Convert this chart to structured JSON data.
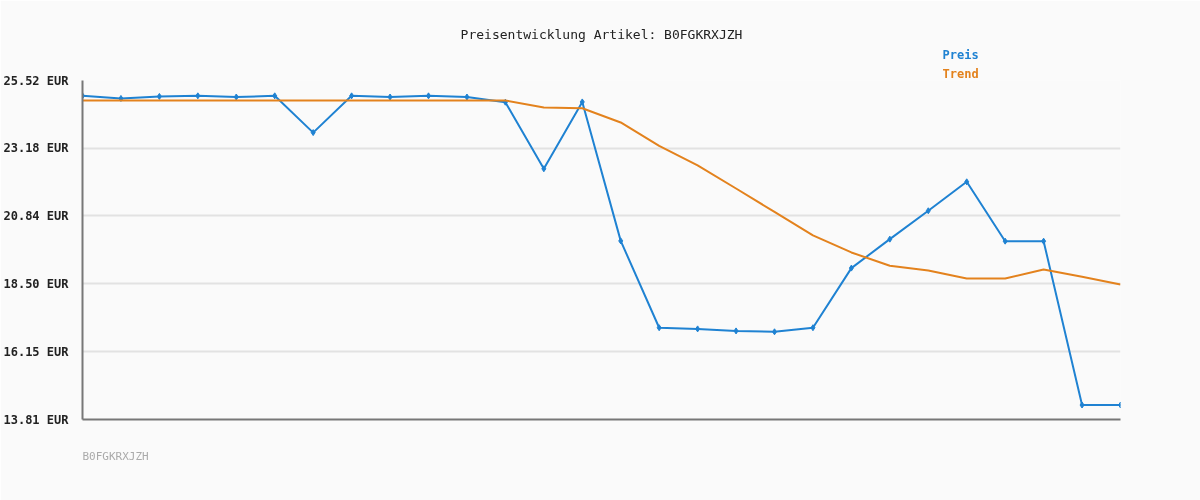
{
  "chart_data": {
    "type": "line",
    "title": "Preisentwicklung Artikel: B0FGKRXJZH",
    "categories": [
      null,
      null,
      null,
      null,
      null,
      null,
      null,
      null,
      null,
      null,
      null,
      null,
      null,
      null,
      null,
      null,
      null,
      null,
      null,
      null,
      null,
      null,
      null,
      null,
      null,
      null,
      null,
      null
    ],
    "series": [
      {
        "name": "Preis",
        "color": "#1f82d2",
        "marker": "diamond",
        "values": [
          24.99,
          24.9,
          24.97,
          24.99,
          24.95,
          24.99,
          23.72,
          24.99,
          24.95,
          24.99,
          24.95,
          24.77,
          22.47,
          24.78,
          19.98,
          16.98,
          16.94,
          16.87,
          16.84,
          16.98,
          19.04,
          20.04,
          21.02,
          22.02,
          19.97,
          19.97,
          14.31,
          14.31
        ]
      },
      {
        "name": "Trend",
        "color": "#e3821d",
        "marker": "none",
        "values": [
          24.83,
          24.83,
          24.83,
          24.83,
          24.83,
          24.83,
          24.83,
          24.83,
          24.83,
          24.83,
          24.83,
          24.83,
          24.59,
          24.56,
          24.07,
          23.26,
          22.59,
          21.79,
          20.98,
          20.17,
          19.58,
          19.12,
          18.96,
          18.68,
          18.68,
          18.99,
          18.74,
          18.47
        ]
      }
    ],
    "ylim": [
      13.81,
      25.52
    ],
    "yticks": [
      {
        "value": 13.81,
        "label": "13.81 EUR"
      },
      {
        "value": 16.15,
        "label": "16.15 EUR"
      },
      {
        "value": 18.5,
        "label": "18.50 EUR"
      },
      {
        "value": 20.84,
        "label": "20.84 EUR"
      },
      {
        "value": 23.18,
        "label": "23.18 EUR"
      },
      {
        "value": 25.52,
        "label": "25.52 EUR"
      }
    ],
    "grid": "y",
    "tick_labels": "y",
    "annotations": [
      "B0FGKRXJZH"
    ]
  }
}
